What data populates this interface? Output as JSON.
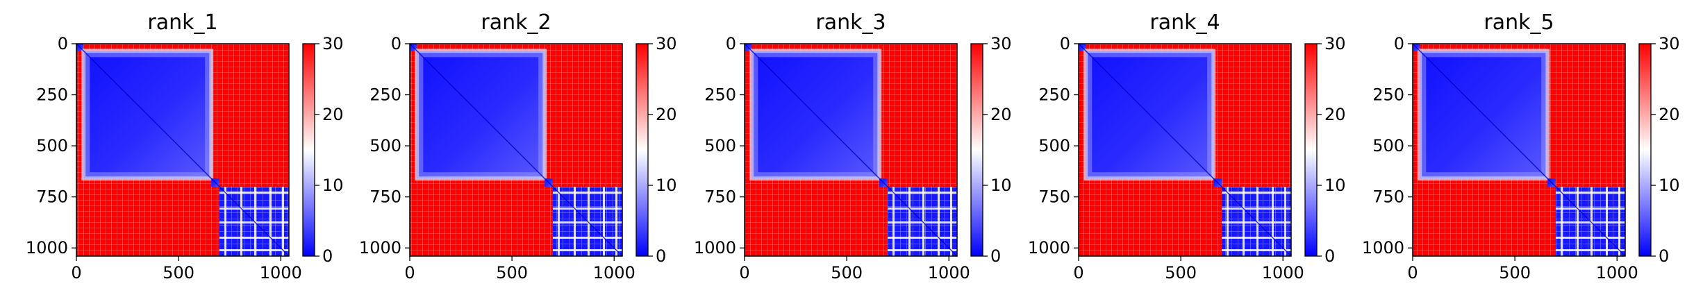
{
  "chart_data": [
    {
      "type": "heatmap",
      "title": "rank_1",
      "x_ticks": [
        0,
        500,
        1000
      ],
      "y_ticks": [
        0,
        250,
        500,
        750,
        1000
      ],
      "xlim": [
        0,
        1040
      ],
      "ylim": [
        1040,
        0
      ],
      "colorbar": {
        "min": 0,
        "max": 30,
        "ticks": [
          0,
          10,
          20,
          30
        ],
        "colormap": "bwr"
      },
      "blocks": [
        {
          "from": 0,
          "to": 35,
          "level": "low"
        },
        {
          "from": 35,
          "to": 660,
          "level": "low"
        },
        {
          "from": 660,
          "to": 700,
          "level": "low"
        },
        {
          "from": 700,
          "to": 1040,
          "level": "low-banded"
        }
      ],
      "off_block_level": "high"
    },
    {
      "type": "heatmap",
      "title": "rank_2",
      "x_ticks": [
        0,
        500,
        1000
      ],
      "y_ticks": [
        0,
        250,
        500,
        750,
        1000
      ],
      "xlim": [
        0,
        1040
      ],
      "ylim": [
        1040,
        0
      ],
      "colorbar": {
        "min": 0,
        "max": 30,
        "ticks": [
          0,
          10,
          20,
          30
        ],
        "colormap": "bwr"
      },
      "blocks": [
        {
          "from": 0,
          "to": 35,
          "level": "low"
        },
        {
          "from": 35,
          "to": 660,
          "level": "low"
        },
        {
          "from": 660,
          "to": 700,
          "level": "low"
        },
        {
          "from": 700,
          "to": 1040,
          "level": "low-banded"
        }
      ],
      "off_block_level": "high"
    },
    {
      "type": "heatmap",
      "title": "rank_3",
      "x_ticks": [
        0,
        500,
        1000
      ],
      "y_ticks": [
        0,
        250,
        500,
        750,
        1000
      ],
      "xlim": [
        0,
        1040
      ],
      "ylim": [
        1040,
        0
      ],
      "colorbar": {
        "min": 0,
        "max": 30,
        "ticks": [
          0,
          10,
          20,
          30
        ],
        "colormap": "bwr"
      },
      "blocks": [
        {
          "from": 0,
          "to": 35,
          "level": "low"
        },
        {
          "from": 35,
          "to": 660,
          "level": "low"
        },
        {
          "from": 660,
          "to": 700,
          "level": "low"
        },
        {
          "from": 700,
          "to": 1040,
          "level": "low-banded"
        }
      ],
      "off_block_level": "high"
    },
    {
      "type": "heatmap",
      "title": "rank_4",
      "x_ticks": [
        0,
        500,
        1000
      ],
      "y_ticks": [
        0,
        250,
        500,
        750,
        1000
      ],
      "xlim": [
        0,
        1040
      ],
      "ylim": [
        1040,
        0
      ],
      "colorbar": {
        "min": 0,
        "max": 30,
        "ticks": [
          0,
          10,
          20,
          30
        ],
        "colormap": "bwr"
      },
      "blocks": [
        {
          "from": 0,
          "to": 35,
          "level": "low"
        },
        {
          "from": 35,
          "to": 660,
          "level": "low"
        },
        {
          "from": 660,
          "to": 700,
          "level": "low"
        },
        {
          "from": 700,
          "to": 1040,
          "level": "low-banded"
        }
      ],
      "off_block_level": "high"
    },
    {
      "type": "heatmap",
      "title": "rank_5",
      "x_ticks": [
        0,
        500,
        1000
      ],
      "y_ticks": [
        0,
        250,
        500,
        750,
        1000
      ],
      "xlim": [
        0,
        1040
      ],
      "ylim": [
        1040,
        0
      ],
      "colorbar": {
        "min": 0,
        "max": 30,
        "ticks": [
          0,
          10,
          20,
          30
        ],
        "colormap": "bwr"
      },
      "blocks": [
        {
          "from": 0,
          "to": 35,
          "level": "low"
        },
        {
          "from": 35,
          "to": 660,
          "level": "low"
        },
        {
          "from": 660,
          "to": 700,
          "level": "low"
        },
        {
          "from": 700,
          "to": 1040,
          "level": "low-banded"
        }
      ],
      "off_block_level": "high"
    }
  ],
  "colors": {
    "high": "#ff0000",
    "mid": "#ffffff",
    "low": "#0000ff",
    "axis": "#000000"
  }
}
